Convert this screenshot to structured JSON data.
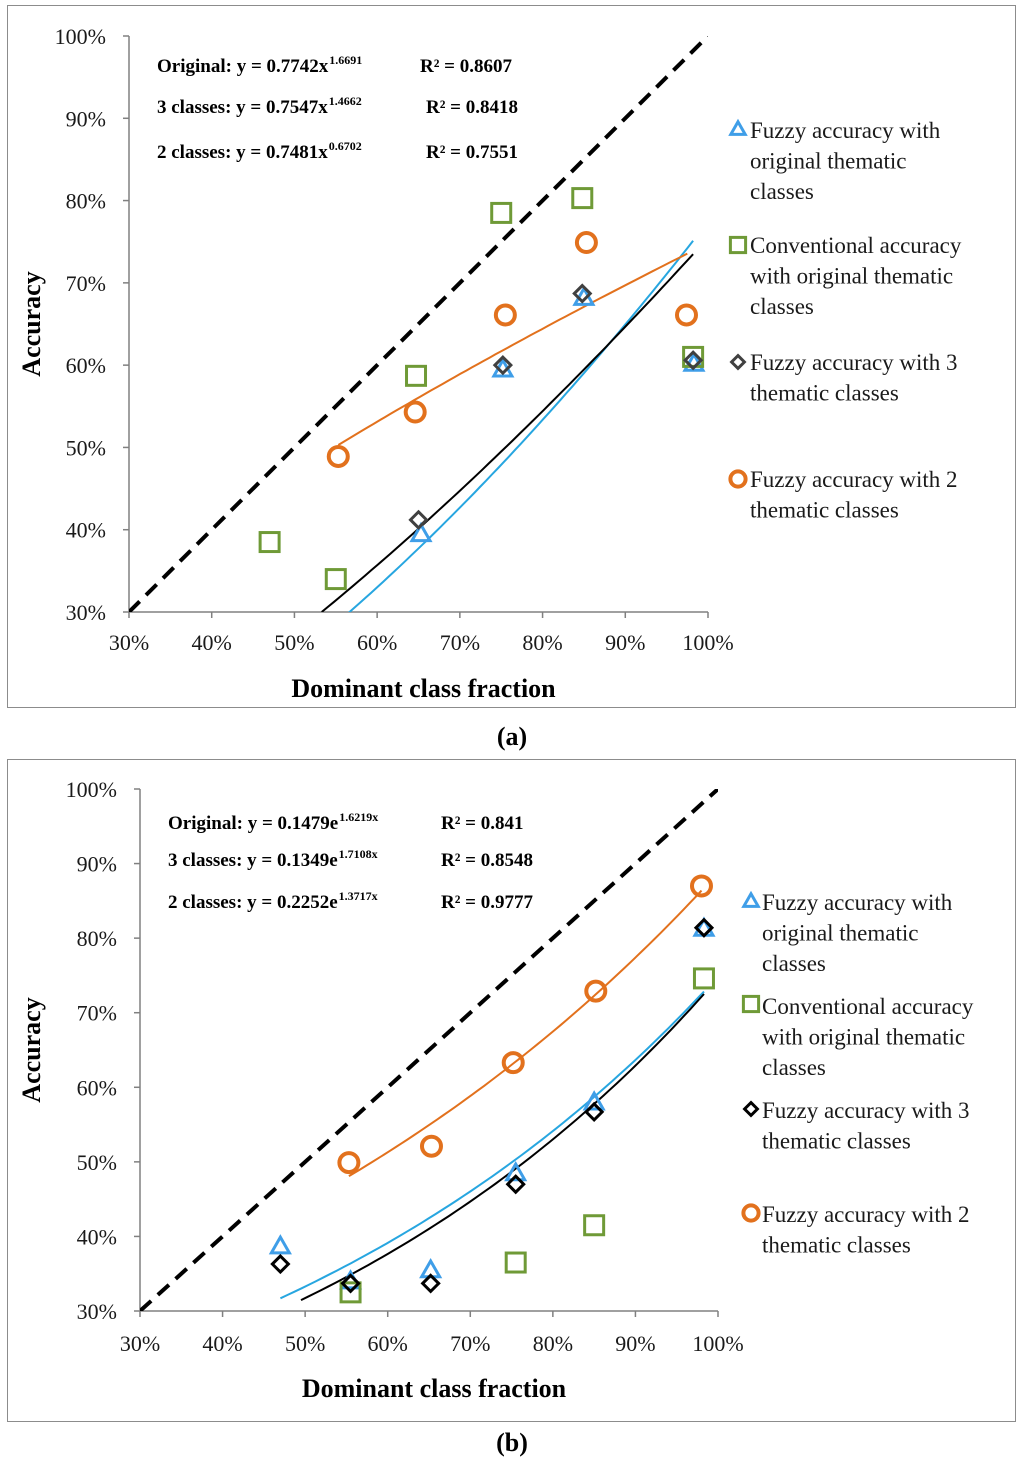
{
  "chart_data": [
    {
      "panel_label": "(a)",
      "type": "scatter",
      "xlabel": "Dominant class fraction",
      "ylabel": "Accuracy",
      "xlim": [
        30,
        100
      ],
      "ylim": [
        30,
        100
      ],
      "xticks": [
        "30%",
        "40%",
        "50%",
        "60%",
        "70%",
        "80%",
        "90%",
        "100%"
      ],
      "yticks": [
        "30%",
        "40%",
        "50%",
        "60%",
        "70%",
        "80%",
        "90%",
        "100%"
      ],
      "equations": [
        {
          "name": "Original",
          "label": "Original: y = 0.7742x",
          "exp": "1.6691",
          "r2": "R² = 0.8607"
        },
        {
          "name": "3 classes",
          "label": "3 classes: y = 0.7547x",
          "exp": "1.4662",
          "r2": "R² = 0.8418"
        },
        {
          "name": "2 classes",
          "label": "2 classes: y = 0.7481x",
          "exp": "0.6702",
          "r2": "R² = 0.7551"
        }
      ],
      "series": [
        {
          "name": "Fuzzy accuracy with original thematic classes",
          "legend_lines": [
            "Fuzzy accuracy with",
            "original thematic",
            "classes"
          ],
          "marker": "triangle",
          "color": "#3f9ee8",
          "x": [
            65.3,
            75.2,
            85.0,
            98.3
          ],
          "y": [
            39.5,
            59.5,
            68.2,
            60.2
          ]
        },
        {
          "name": "Conventional accuracy with original thematic classes",
          "legend_lines": [
            "Conventional accuracy",
            "with original thematic",
            "classes"
          ],
          "marker": "square",
          "color": "#6f9a37",
          "x": [
            47.0,
            55.0,
            64.7,
            75.0,
            84.8,
            98.2
          ],
          "y": [
            38.5,
            34.0,
            58.7,
            78.5,
            80.3,
            61.0
          ]
        },
        {
          "name": "Fuzzy accuracy with 3 thematic classes",
          "legend_lines": [
            "Fuzzy accuracy with 3",
            "thematic classes"
          ],
          "marker": "diamond",
          "color": "#404040",
          "x": [
            65.0,
            75.2,
            84.8,
            98.2
          ],
          "y": [
            41.2,
            60.0,
            68.7,
            60.6
          ]
        },
        {
          "name": "Fuzzy accuracy with 2 thematic classes",
          "legend_lines": [
            "Fuzzy accuracy with 2",
            "thematic classes"
          ],
          "marker": "circle",
          "color": "#e2711d",
          "x": [
            55.3,
            64.6,
            75.5,
            85.3,
            97.4
          ],
          "y": [
            48.9,
            54.3,
            66.1,
            74.9,
            66.1
          ]
        }
      ],
      "trendlines": [
        {
          "name": "Original",
          "model": "power",
          "a": 0.7742,
          "b": 1.6691,
          "color": "#27a6e0",
          "x_range": [
            56.5,
            98.2
          ]
        },
        {
          "name": "3 classes",
          "model": "power",
          "a": 0.7547,
          "b": 1.4662,
          "color": "#000000",
          "x_range": [
            53.3,
            98.2
          ]
        },
        {
          "name": "2 classes",
          "model": "power",
          "a": 0.7481,
          "b": 0.6702,
          "color": "#e2711d",
          "x_range": [
            55.3,
            97.5
          ]
        }
      ],
      "reference_line": {
        "name": "1:1 line",
        "style": "dashed",
        "color": "#000000"
      }
    },
    {
      "panel_label": "(b)",
      "type": "scatter",
      "xlabel": "Dominant class fraction",
      "ylabel": "Accuracy",
      "xlim": [
        30,
        100
      ],
      "ylim": [
        30,
        100
      ],
      "xticks": [
        "30%",
        "40%",
        "50%",
        "60%",
        "70%",
        "80%",
        "90%",
        "100%"
      ],
      "yticks": [
        "30%",
        "40%",
        "50%",
        "60%",
        "70%",
        "80%",
        "90%",
        "100%"
      ],
      "equations": [
        {
          "name": "Original",
          "label": "Original: y = 0.1479e",
          "exp": "1.6219x",
          "r2": "R² = 0.841"
        },
        {
          "name": "3 classes",
          "label": "3 classes: y = 0.1349e",
          "exp": "1.7108x",
          "r2": "R² = 0.8548"
        },
        {
          "name": "2 classes",
          "label": "2 classes: y = 0.2252e",
          "exp": "1.3717x",
          "r2": "R² = 0.9777"
        }
      ],
      "series": [
        {
          "name": "Fuzzy accuracy with original thematic classes",
          "legend_lines": [
            "Fuzzy accuracy with",
            "original thematic",
            "classes"
          ],
          "marker": "triangle",
          "color": "#3f9ee8",
          "x": [
            47.0,
            55.5,
            65.2,
            75.5,
            85.0,
            98.3
          ],
          "y": [
            38.7,
            34.0,
            35.5,
            48.5,
            58.0,
            81.3
          ]
        },
        {
          "name": "Conventional accuracy with original thematic classes",
          "legend_lines": [
            "Conventional accuracy",
            "with original thematic",
            "classes"
          ],
          "marker": "square",
          "color": "#6f9a37",
          "x": [
            55.5,
            75.5,
            85.0,
            98.3
          ],
          "y": [
            32.5,
            36.5,
            41.5,
            74.6
          ]
        },
        {
          "name": "Fuzzy accuracy with 3 thematic classes",
          "legend_lines": [
            "Fuzzy accuracy with 3",
            "thematic classes"
          ],
          "marker": "diamond",
          "color": "#000000",
          "x": [
            47.0,
            55.5,
            65.2,
            75.5,
            85.0,
            98.3
          ],
          "y": [
            36.3,
            33.7,
            33.7,
            47.0,
            56.7,
            81.4
          ]
        },
        {
          "name": "Fuzzy accuracy with 2 thematic classes",
          "legend_lines": [
            "Fuzzy accuracy with 2",
            "thematic classes"
          ],
          "marker": "circle",
          "color": "#e2711d",
          "x": [
            55.3,
            65.3,
            75.2,
            85.2,
            98.0
          ],
          "y": [
            49.9,
            52.1,
            63.3,
            72.9,
            87.0
          ]
        }
      ],
      "trendlines": [
        {
          "name": "Original",
          "model": "exp",
          "a": 0.1479,
          "b": 1.6219,
          "color": "#27a6e0",
          "x_range": [
            47.0,
            98.3
          ]
        },
        {
          "name": "3 classes",
          "model": "exp",
          "a": 0.1349,
          "b": 1.7108,
          "color": "#000000",
          "x_range": [
            49.5,
            98.3
          ]
        },
        {
          "name": "2 classes",
          "model": "exp",
          "a": 0.2252,
          "b": 1.3717,
          "color": "#e2711d",
          "x_range": [
            55.3,
            98.0
          ]
        }
      ],
      "reference_line": {
        "name": "1:1 line",
        "style": "dashed",
        "color": "#000000"
      }
    }
  ]
}
